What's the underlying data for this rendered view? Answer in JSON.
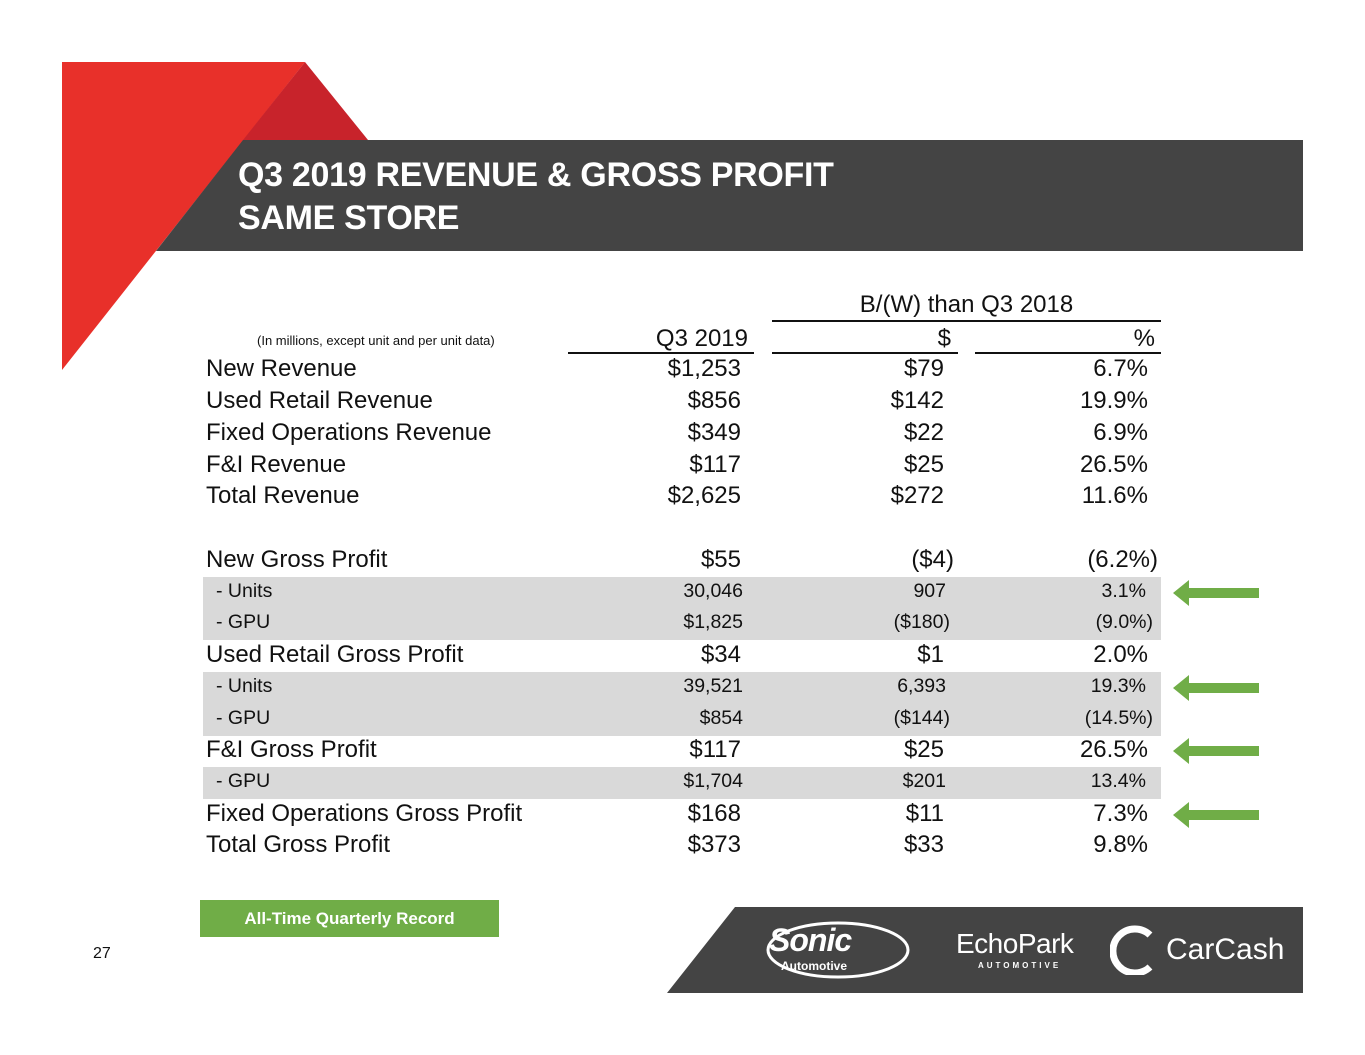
{
  "title": {
    "line1": "Q3 2019 REVENUE & GROSS PROFIT",
    "line2": "SAME STORE"
  },
  "table": {
    "group_header": "B/(W) than Q3 2018",
    "note": "(In millions, except unit and per unit data)",
    "columns": [
      "Q3 2019",
      "$",
      "%"
    ],
    "rows": [
      {
        "label": "New Revenue",
        "q3": "$1,253",
        "d": "$79",
        "p": "6.7%",
        "type": "main"
      },
      {
        "label": "Used Retail Revenue",
        "q3": "$856",
        "d": "$142",
        "p": "19.9%",
        "type": "main"
      },
      {
        "label": "Fixed Operations Revenue",
        "q3": "$349",
        "d": "$22",
        "p": "6.9%",
        "type": "main"
      },
      {
        "label": "F&I Revenue",
        "q3": "$117",
        "d": "$25",
        "p": "26.5%",
        "type": "main"
      },
      {
        "label": "Total Revenue",
        "q3": "$2,625",
        "d": "$272",
        "p": "11.6%",
        "type": "main"
      },
      {
        "label": "New Gross Profit",
        "q3": "$55",
        "d": "($4)",
        "p": "(6.2%)",
        "type": "main"
      },
      {
        "label": "- Units",
        "q3": "30,046",
        "d": "907",
        "p": "3.1%",
        "type": "sub",
        "arrow": true
      },
      {
        "label": "- GPU",
        "q3": "$1,825",
        "d": "($180)",
        "p": "(9.0%)",
        "type": "sub"
      },
      {
        "label": "Used Retail Gross Profit",
        "q3": "$34",
        "d": "$1",
        "p": "2.0%",
        "type": "main"
      },
      {
        "label": "- Units",
        "q3": "39,521",
        "d": "6,393",
        "p": "19.3%",
        "type": "sub",
        "arrow": true
      },
      {
        "label": "- GPU",
        "q3": "$854",
        "d": "($144)",
        "p": "(14.5%)",
        "type": "sub"
      },
      {
        "label": "F&I Gross Profit",
        "q3": "$117",
        "d": "$25",
        "p": "26.5%",
        "type": "main",
        "arrow": true
      },
      {
        "label": "- GPU",
        "q3": "$1,704",
        "d": "$201",
        "p": "13.4%",
        "type": "sub"
      },
      {
        "label": "Fixed Operations Gross Profit",
        "q3": "$168",
        "d": "$11",
        "p": "7.3%",
        "type": "main",
        "arrow": true
      },
      {
        "label": "Total Gross Profit",
        "q3": "$373",
        "d": "$33",
        "p": "9.8%",
        "type": "main"
      }
    ]
  },
  "legend": {
    "record_label": "All-Time Quarterly Record",
    "record_color": "#70ad47",
    "arrow_meaning_icon": "left-arrow-icon"
  },
  "page_number": "27",
  "logos": {
    "sonic": "Sonic",
    "sonic_sub": "Automotive",
    "echopark": "EchoPark",
    "echopark_sub": "AUTOMOTIVE",
    "carcash": "CarCash"
  },
  "colors": {
    "red": "#e8302a",
    "dark_red": "#c8232b",
    "band": "#444444",
    "arrow": "#70ad47"
  }
}
